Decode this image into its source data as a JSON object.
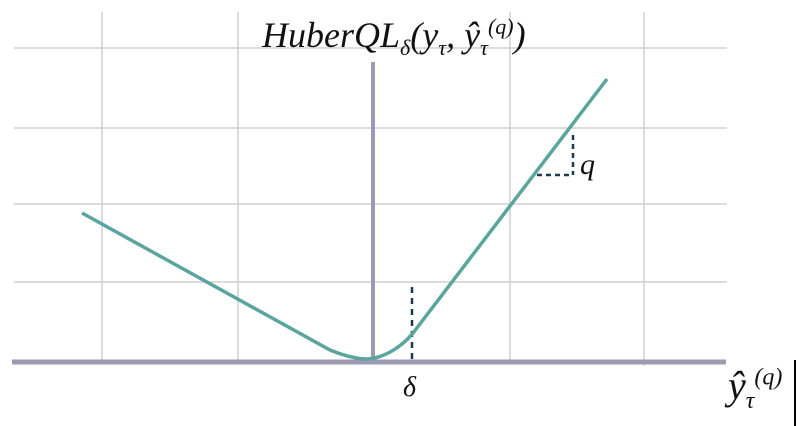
{
  "title": {
    "main": "HuberQL",
    "sub": "δ",
    "args_open": "(y",
    "arg1_sub": "τ",
    "sep": ", ",
    "arg2": "ŷ",
    "arg2_sub": "τ",
    "arg2_sup": "(q)",
    "close": ")"
  },
  "labels": {
    "delta": "δ",
    "q": "q",
    "x_axis": "ŷ",
    "x_axis_sub": "τ",
    "x_axis_sup": "(q)"
  },
  "colors": {
    "curve": "#5aa59d",
    "axis": "#9b9ab2",
    "grid": "#d0d0d0",
    "dashed": "#1d3a4f"
  }
}
